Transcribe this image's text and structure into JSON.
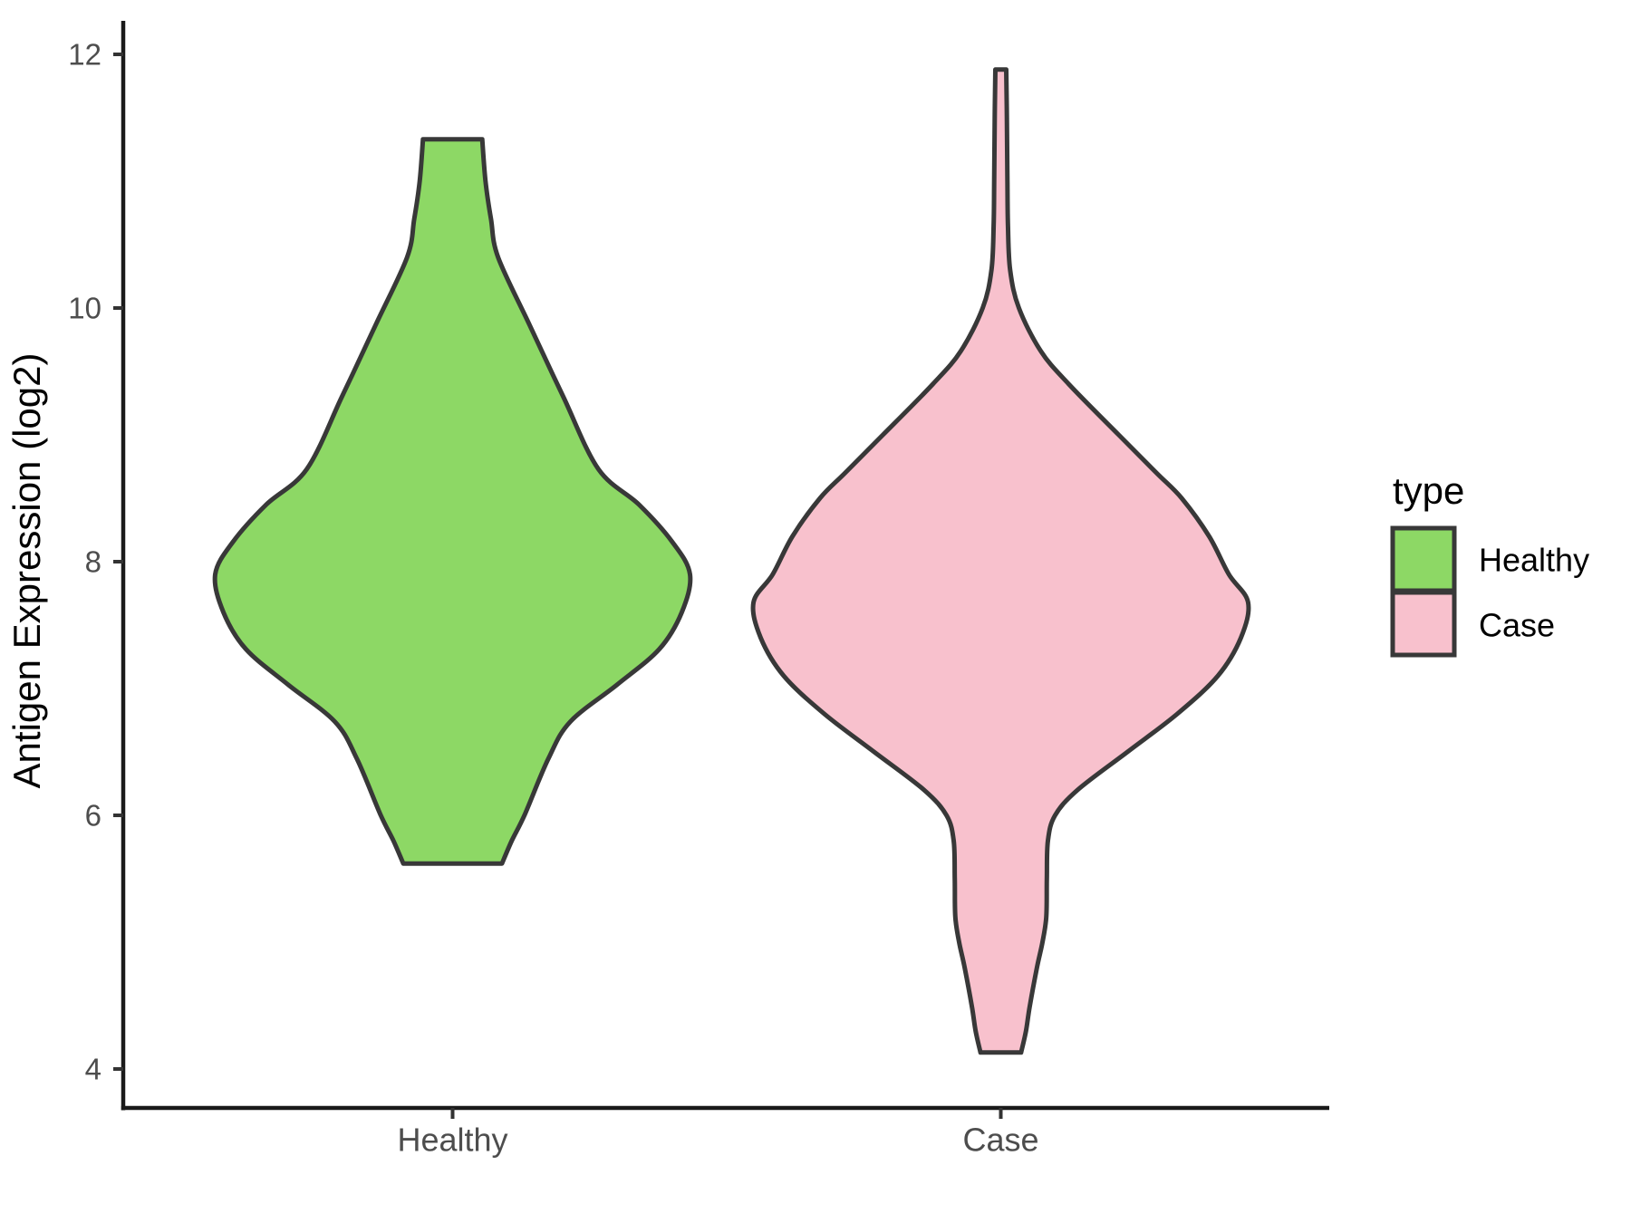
{
  "y_axis": {
    "title": "Antigen Expression (log2)",
    "ticks": [
      {
        "value": 4,
        "label": "4"
      },
      {
        "value": 6,
        "label": "6"
      },
      {
        "value": 8,
        "label": "8"
      },
      {
        "value": 10,
        "label": "10"
      },
      {
        "value": 12,
        "label": "12"
      }
    ],
    "panel_range": [
      3.7,
      12.26
    ]
  },
  "x_axis": {
    "categories": [
      "Healthy",
      "Case"
    ]
  },
  "legend": {
    "title": "type",
    "items": [
      {
        "label": "Healthy",
        "color": "#8DD865"
      },
      {
        "label": "Case",
        "color": "#F8C1CD"
      }
    ]
  },
  "colors": {
    "outline": "#383838",
    "axis": "#1a1a1a",
    "tick_text": "#4d4d4d"
  },
  "chart_data": {
    "type": "violin",
    "title": "",
    "xlabel": "",
    "ylabel": "Antigen Expression (log2)",
    "categories": [
      "Healthy",
      "Case"
    ],
    "y_ticks": [
      4,
      6,
      8,
      10,
      12
    ],
    "ylim": [
      3.7,
      12.26
    ],
    "grid": false,
    "legend_position": "right",
    "series": [
      {
        "name": "Healthy",
        "fill": "#8DD865",
        "outline": "#383838",
        "min": 5.62,
        "max": 11.33,
        "peak_density_at": 7.9,
        "profile_value_halfwidth": [
          [
            11.33,
            0.054
          ],
          [
            11.0,
            0.06
          ],
          [
            10.7,
            0.07
          ],
          [
            10.4,
            0.083
          ],
          [
            9.87,
            0.14
          ],
          [
            9.3,
            0.202
          ],
          [
            8.73,
            0.266
          ],
          [
            8.45,
            0.34
          ],
          [
            8.16,
            0.4
          ],
          [
            7.9,
            0.433
          ],
          [
            7.6,
            0.418
          ],
          [
            7.31,
            0.377
          ],
          [
            7.03,
            0.3
          ],
          [
            6.74,
            0.215
          ],
          [
            6.45,
            0.175
          ],
          [
            6.01,
            0.132
          ],
          [
            5.8,
            0.108
          ],
          [
            5.62,
            0.09
          ]
        ]
      },
      {
        "name": "Case",
        "fill": "#F8C1CD",
        "outline": "#383838",
        "min": 4.13,
        "max": 11.88,
        "peak_density_at": 7.68,
        "profile_value_halfwidth": [
          [
            11.88,
            0.01
          ],
          [
            11.5,
            0.011
          ],
          [
            11.0,
            0.012
          ],
          [
            10.65,
            0.013
          ],
          [
            10.3,
            0.017
          ],
          [
            10.0,
            0.033
          ],
          [
            9.66,
            0.073
          ],
          [
            9.4,
            0.124
          ],
          [
            9.0,
            0.215
          ],
          [
            8.7,
            0.284
          ],
          [
            8.5,
            0.33
          ],
          [
            8.2,
            0.38
          ],
          [
            7.9,
            0.416
          ],
          [
            7.68,
            0.451
          ],
          [
            7.4,
            0.438
          ],
          [
            7.1,
            0.396
          ],
          [
            6.8,
            0.322
          ],
          [
            6.5,
            0.231
          ],
          [
            6.2,
            0.14
          ],
          [
            6.0,
            0.099
          ],
          [
            5.8,
            0.086
          ],
          [
            5.5,
            0.084
          ],
          [
            5.2,
            0.083
          ],
          [
            5.0,
            0.076
          ],
          [
            4.8,
            0.066
          ],
          [
            4.5,
            0.053
          ],
          [
            4.3,
            0.046
          ],
          [
            4.13,
            0.037
          ]
        ]
      }
    ]
  }
}
